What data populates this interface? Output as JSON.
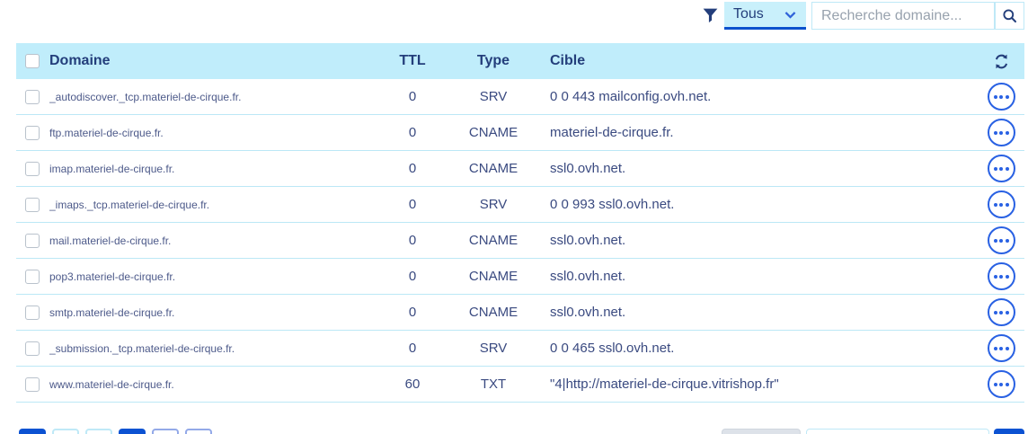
{
  "toolbar": {
    "filter_value": "Tous",
    "search_placeholder": "Recherche domaine..."
  },
  "table": {
    "headers": {
      "domain": "Domaine",
      "ttl": "TTL",
      "type": "Type",
      "target": "Cible"
    },
    "rows": [
      {
        "domain": "_autodiscover._tcp.materiel-de-cirque.fr.",
        "ttl": "0",
        "type": "SRV",
        "target": "0 0 443 mailconfig.ovh.net."
      },
      {
        "domain": "ftp.materiel-de-cirque.fr.",
        "ttl": "0",
        "type": "CNAME",
        "target": "materiel-de-cirque.fr."
      },
      {
        "domain": "imap.materiel-de-cirque.fr.",
        "ttl": "0",
        "type": "CNAME",
        "target": "ssl0.ovh.net."
      },
      {
        "domain": "_imaps._tcp.materiel-de-cirque.fr.",
        "ttl": "0",
        "type": "SRV",
        "target": "0 0 993 ssl0.ovh.net."
      },
      {
        "domain": "mail.materiel-de-cirque.fr.",
        "ttl": "0",
        "type": "CNAME",
        "target": "ssl0.ovh.net."
      },
      {
        "domain": "pop3.materiel-de-cirque.fr.",
        "ttl": "0",
        "type": "CNAME",
        "target": "ssl0.ovh.net."
      },
      {
        "domain": "smtp.materiel-de-cirque.fr.",
        "ttl": "0",
        "type": "CNAME",
        "target": "ssl0.ovh.net."
      },
      {
        "domain": "_submission._tcp.materiel-de-cirque.fr.",
        "ttl": "0",
        "type": "SRV",
        "target": "0 0 465 ssl0.ovh.net."
      },
      {
        "domain": "www.materiel-de-cirque.fr.",
        "ttl": "60",
        "type": "TXT",
        "target": "\"4|http://materiel-de-cirque.vitrishop.fr\""
      }
    ]
  },
  "pagination": {
    "buttons": [
      "filled",
      "light",
      "light",
      "filled",
      "outline",
      "outline"
    ]
  },
  "icons": {
    "filter": "funnel-icon",
    "select_caret": "chevron-down-icon",
    "search": "search-icon",
    "header_refresh": "refresh-icon",
    "row_actions": "ellipsis-icon"
  },
  "colors": {
    "header_bg": "#c0edfb",
    "row_border": "#bce8f6",
    "navy_text": "#233e7b",
    "body_text": "#3a4a80",
    "domain_text": "#4d5a8a",
    "accent_blue": "#2961e3",
    "primary_button": "#0c52d2",
    "select_bg": "#c9f0fb",
    "select_underline": "#0b51cd",
    "input_border": "#bfe9f7",
    "placeholder": "#98a2ae"
  }
}
